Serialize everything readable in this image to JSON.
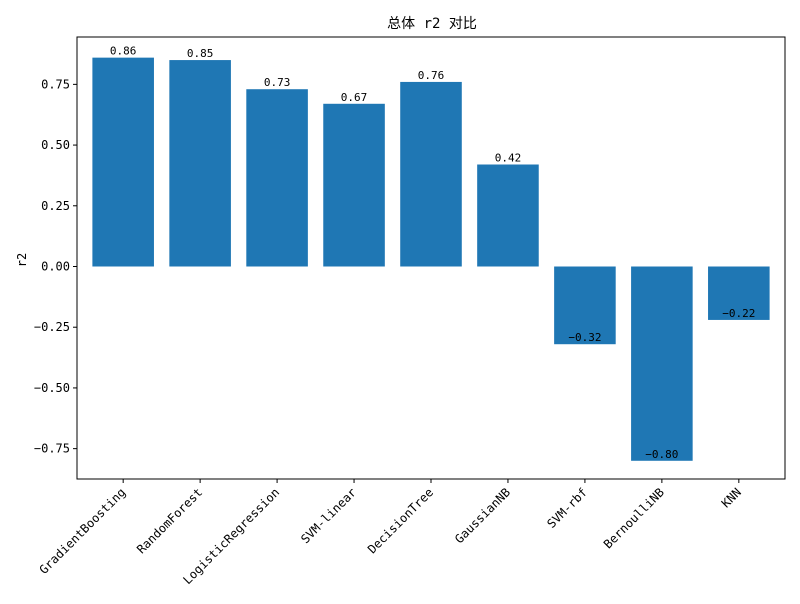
{
  "chart_data": {
    "type": "bar",
    "title": "总体 r2 对比",
    "xlabel": "",
    "ylabel": "r2",
    "categories": [
      "GradientBoosting",
      "RandomForest",
      "LogisticRegression",
      "SVM-linear",
      "DecisionTree",
      "GaussianNB",
      "SVM-rbf",
      "BernoulliNB",
      "KNN"
    ],
    "values": [
      0.86,
      0.85,
      0.73,
      0.67,
      0.76,
      0.42,
      -0.32,
      -0.8,
      -0.22
    ],
    "value_labels": [
      "0.86",
      "0.85",
      "0.73",
      "0.67",
      "0.76",
      "0.42",
      "−0.32",
      "−0.80",
      "−0.22"
    ],
    "ylim": [
      -0.875,
      0.945
    ],
    "yticks": [
      -0.75,
      -0.5,
      -0.25,
      0.0,
      0.25,
      0.5,
      0.75
    ],
    "ytick_labels": [
      "−0.75",
      "−0.50",
      "−0.25",
      "0.00",
      "0.25",
      "0.50",
      "0.75"
    ],
    "grid": false,
    "bar_color": "#1f77b4"
  }
}
